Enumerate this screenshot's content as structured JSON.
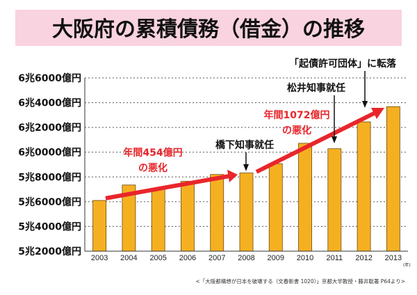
{
  "colors": {
    "bar": "#f5b021",
    "bar_edge": "#6a4a10",
    "trend": "#e8262b",
    "title_bg": "#f9d3df"
  },
  "chart_data": {
    "type": "bar",
    "title": "大阪府の累積債務（借金）の推移",
    "xlabel": "(年)",
    "ylabel": "",
    "categories": [
      "2003",
      "2004",
      "2005",
      "2006",
      "2007",
      "2008",
      "2009",
      "2010",
      "2011",
      "2012",
      "2013"
    ],
    "values": [
      56100,
      57350,
      57000,
      57650,
      58200,
      58320,
      59070,
      60720,
      60280,
      62450,
      63680
    ],
    "unit": "億円",
    "ylim": [
      52000,
      66000
    ],
    "yticks": [
      {
        "v": 66000,
        "label": "6兆6000億円"
      },
      {
        "v": 64000,
        "label": "6兆4000億円"
      },
      {
        "v": 62000,
        "label": "6兆2000億円"
      },
      {
        "v": 60000,
        "label": "6兆0000億円"
      },
      {
        "v": 58000,
        "label": "5兆8000億円"
      },
      {
        "v": 56000,
        "label": "5兆6000億円"
      },
      {
        "v": 54000,
        "label": "5兆4000億円"
      },
      {
        "v": 52000,
        "label": "5兆2000億円"
      }
    ],
    "grid": true,
    "annotations": {
      "trend1_line1": "年間454億円",
      "trend1_line2": "の悪化",
      "trend2_line1": "年間1072億円",
      "trend2_line2": "の悪化",
      "hashimoto": "橋下知事就任",
      "matsui": "松井知事就任",
      "kisai": "「起債許可団体」に転落"
    },
    "source": "<「大阪都構想が日本を破壊する（文春新書 1020）」京都大学教授・藤井聡著 P64より>"
  }
}
